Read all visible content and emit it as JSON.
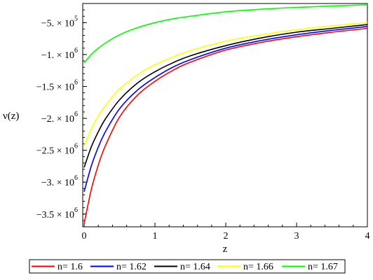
{
  "chart_data": {
    "type": "line",
    "title": "",
    "xlabel": "z",
    "ylabel": "ν(z)",
    "xlim": [
      -0.02,
      4.0
    ],
    "ylim": [
      -3700000,
      -200000
    ],
    "grid": false,
    "legend_position": "bottom",
    "x_ticks": [
      {
        "value": 0,
        "label": "0"
      },
      {
        "value": 1,
        "label": "1"
      },
      {
        "value": 2,
        "label": "2"
      },
      {
        "value": 3,
        "label": "3"
      },
      {
        "value": 4,
        "label": "4"
      }
    ],
    "y_ticks": [
      {
        "value": -500000,
        "mantissa": "−5. × 10",
        "exp": "5"
      },
      {
        "value": -1000000,
        "mantissa": "−1. × 10",
        "exp": "6"
      },
      {
        "value": -1500000,
        "mantissa": "−1.5 × 10",
        "exp": "6"
      },
      {
        "value": -2000000,
        "mantissa": "−2. × 10",
        "exp": "6"
      },
      {
        "value": -2500000,
        "mantissa": "−2.5 × 10",
        "exp": "6"
      },
      {
        "value": -3000000,
        "mantissa": "−3. × 10",
        "exp": "6"
      },
      {
        "value": -3500000,
        "mantissa": "−3.5 × 10",
        "exp": "6"
      }
    ],
    "series": [
      {
        "name": "n= 1.6",
        "color": "#ff0000",
        "x": [
          0,
          0.1,
          0.2,
          0.3,
          0.5,
          0.75,
          1.0,
          1.25,
          1.5,
          2.0,
          2.5,
          3.0,
          3.5,
          4.0
        ],
        "y": [
          -3650000,
          -3120000,
          -2730000,
          -2430000,
          -1980000,
          -1640000,
          -1420000,
          -1250000,
          -1120000,
          -930000,
          -810000,
          -720000,
          -650000,
          -590000
        ]
      },
      {
        "name": "n= 1.62",
        "color": "#0000ff",
        "x": [
          0,
          0.1,
          0.2,
          0.3,
          0.5,
          0.75,
          1.0,
          1.25,
          1.5,
          2.0,
          2.5,
          3.0,
          3.5,
          4.0
        ],
        "y": [
          -3150000,
          -2750000,
          -2450000,
          -2210000,
          -1850000,
          -1560000,
          -1360000,
          -1200000,
          -1080000,
          -900000,
          -780000,
          -690000,
          -620000,
          -560000
        ]
      },
      {
        "name": "n= 1.64",
        "color": "#000000",
        "x": [
          0,
          0.1,
          0.2,
          0.3,
          0.5,
          0.75,
          1.0,
          1.25,
          1.5,
          2.0,
          2.5,
          3.0,
          3.5,
          4.0
        ],
        "y": [
          -2770000,
          -2450000,
          -2210000,
          -2010000,
          -1710000,
          -1450000,
          -1270000,
          -1130000,
          -1020000,
          -860000,
          -740000,
          -650000,
          -590000,
          -530000
        ]
      },
      {
        "name": "n= 1.66",
        "color": "#ffff00",
        "x": [
          0,
          0.1,
          0.2,
          0.3,
          0.5,
          0.75,
          1.0,
          1.25,
          1.5,
          2.0,
          2.5,
          3.0,
          3.5,
          4.0
        ],
        "y": [
          -2430000,
          -2170000,
          -1960000,
          -1800000,
          -1540000,
          -1320000,
          -1160000,
          -1040000,
          -940000,
          -790000,
          -690000,
          -610000,
          -550000,
          -500000
        ]
      },
      {
        "name": "n= 1.67",
        "color": "#00ff00",
        "x": [
          0,
          0.1,
          0.2,
          0.3,
          0.5,
          0.75,
          1.0,
          1.25,
          1.5,
          2.0,
          2.5,
          3.0,
          3.5,
          4.0
        ],
        "y": [
          -1130000,
          -1000000,
          -900000,
          -820000,
          -690000,
          -580000,
          -500000,
          -440000,
          -400000,
          -330000,
          -290000,
          -260000,
          -240000,
          -220000
        ]
      }
    ]
  }
}
